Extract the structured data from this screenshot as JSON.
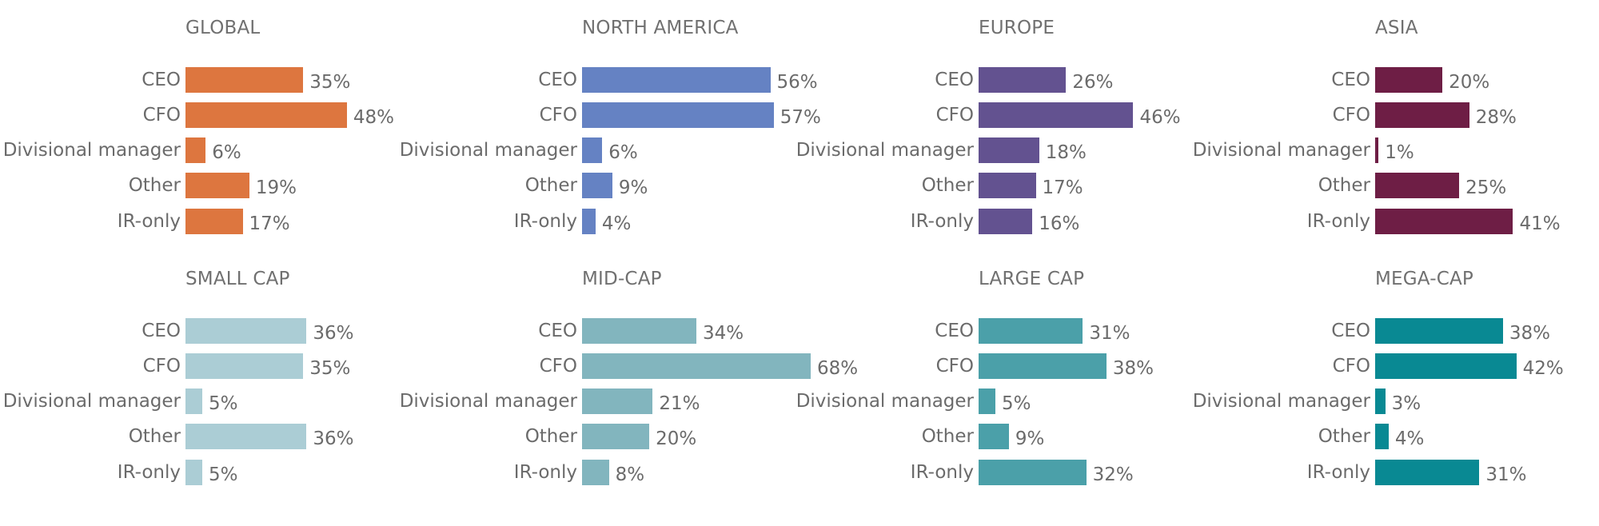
{
  "chart_data": [
    {
      "type": "bar",
      "title": "GLOBAL",
      "orientation": "horizontal",
      "color": "#dd763f",
      "categories": [
        "CEO",
        "CFO",
        "Divisional manager",
        "Other",
        "IR-only"
      ],
      "values": [
        35,
        48,
        6,
        19,
        17
      ],
      "value_labels": [
        "35%",
        "48%",
        "6%",
        "19%",
        "17%"
      ],
      "xlim": [
        0,
        70
      ]
    },
    {
      "type": "bar",
      "title": "NORTH AMERICA",
      "orientation": "horizontal",
      "color": "#6582c3",
      "categories": [
        "CEO",
        "CFO",
        "Divisional manager",
        "Other",
        "IR-only"
      ],
      "values": [
        56,
        57,
        6,
        9,
        4
      ],
      "value_labels": [
        "56%",
        "57%",
        "6%",
        "9%",
        "4%"
      ],
      "xlim": [
        0,
        70
      ]
    },
    {
      "type": "bar",
      "title": "EUROPE",
      "orientation": "horizontal",
      "color": "#635290",
      "categories": [
        "CEO",
        "CFO",
        "Divisional manager",
        "Other",
        "IR-only"
      ],
      "values": [
        26,
        46,
        18,
        17,
        16
      ],
      "value_labels": [
        "26%",
        "46%",
        "18%",
        "17%",
        "16%"
      ],
      "xlim": [
        0,
        70
      ]
    },
    {
      "type": "bar",
      "title": "ASIA",
      "orientation": "horizontal",
      "color": "#6e1e45",
      "categories": [
        "CEO",
        "CFO",
        "Divisional manager",
        "Other",
        "IR-only"
      ],
      "values": [
        20,
        28,
        1,
        25,
        41
      ],
      "value_labels": [
        "20%",
        "28%",
        "1%",
        "25%",
        "41%"
      ],
      "xlim": [
        0,
        70
      ]
    },
    {
      "type": "bar",
      "title": "SMALL CAP",
      "orientation": "horizontal",
      "color": "#abcdd5",
      "categories": [
        "CEO",
        "CFO",
        "Divisional manager",
        "Other",
        "IR-only"
      ],
      "values": [
        36,
        35,
        5,
        36,
        5
      ],
      "value_labels": [
        "36%",
        "35%",
        "5%",
        "36%",
        "5%"
      ],
      "xlim": [
        0,
        70
      ]
    },
    {
      "type": "bar",
      "title": "MID-CAP",
      "orientation": "horizontal",
      "color": "#82b5be",
      "categories": [
        "CEO",
        "CFO",
        "Divisional manager",
        "Other",
        "IR-only"
      ],
      "values": [
        34,
        68,
        21,
        20,
        8
      ],
      "value_labels": [
        "34%",
        "68%",
        "21%",
        "20%",
        "8%"
      ],
      "xlim": [
        0,
        70
      ]
    },
    {
      "type": "bar",
      "title": "LARGE CAP",
      "orientation": "horizontal",
      "color": "#4ba0a9",
      "categories": [
        "CEO",
        "CFO",
        "Divisional manager",
        "Other",
        "IR-only"
      ],
      "values": [
        31,
        38,
        5,
        9,
        32
      ],
      "value_labels": [
        "31%",
        "38%",
        "5%",
        "9%",
        "32%"
      ],
      "xlim": [
        0,
        70
      ]
    },
    {
      "type": "bar",
      "title": "MEGA-CAP",
      "orientation": "horizontal",
      "color": "#098993",
      "categories": [
        "CEO",
        "CFO",
        "Divisional manager",
        "Other",
        "IR-only"
      ],
      "values": [
        38,
        42,
        3,
        4,
        31
      ],
      "value_labels": [
        "38%",
        "42%",
        "3%",
        "4%",
        "31%"
      ],
      "xlim": [
        0,
        70
      ]
    }
  ]
}
